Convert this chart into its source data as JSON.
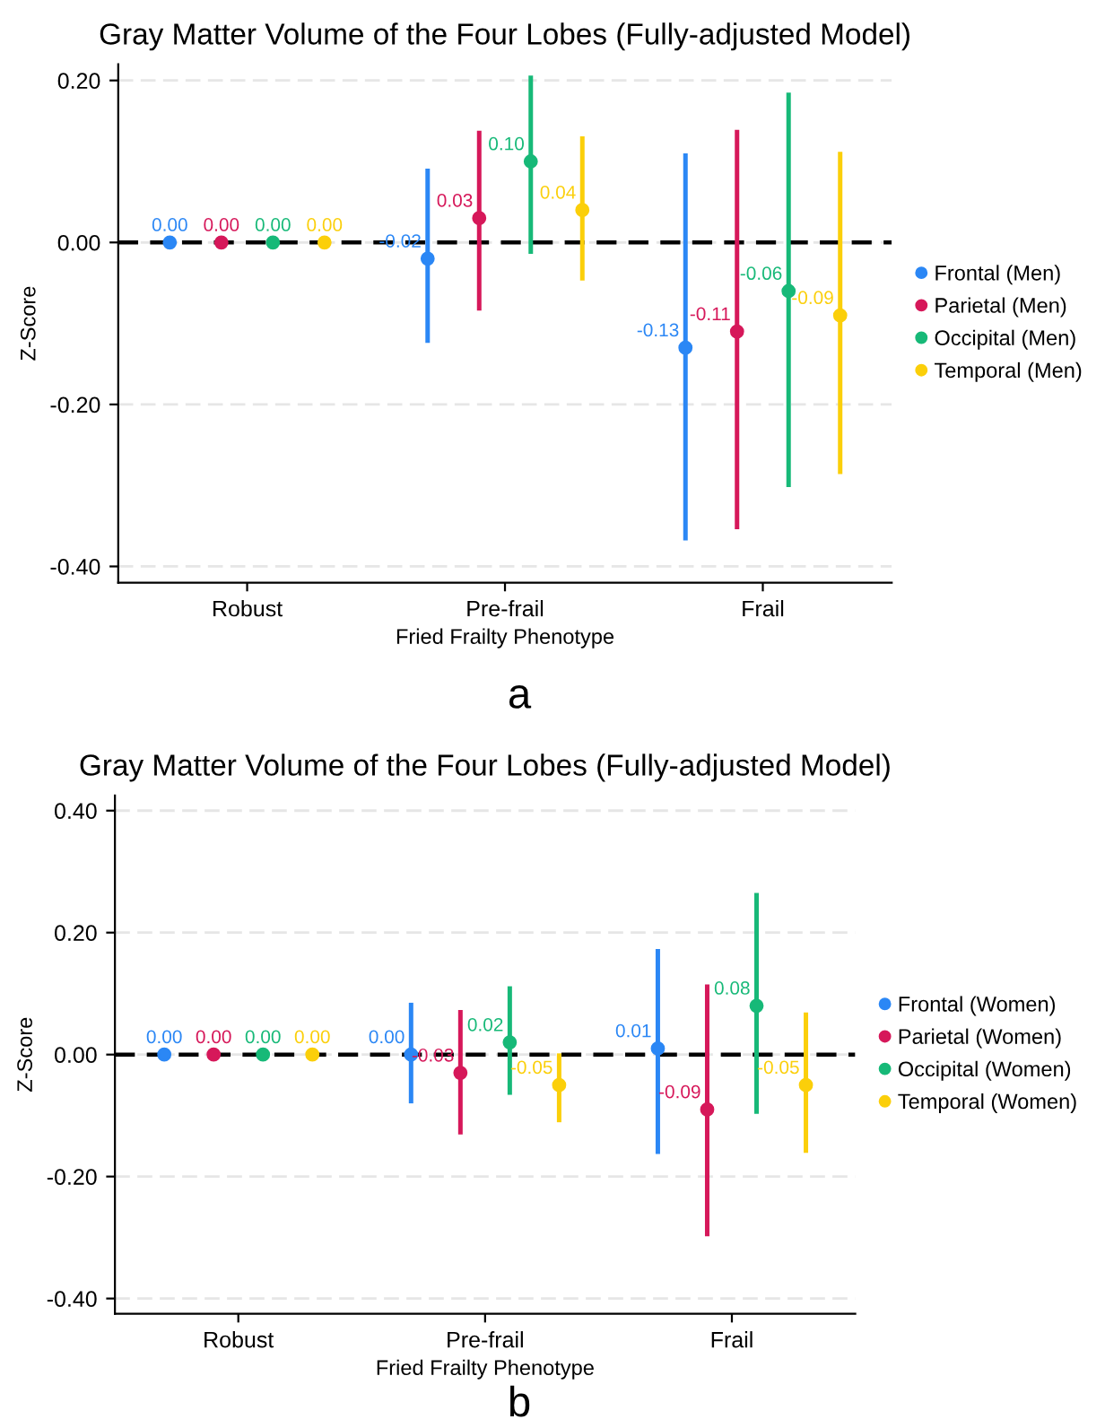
{
  "chart_data": [
    {
      "type": "scatter",
      "title": "Gray Matter Volume of the Four Lobes (Fully-adjusted Model)",
      "xlabel": "Fried Frailty Phenotype",
      "ylabel": "Z-Score",
      "annotations": [
        "a"
      ],
      "categories": [
        "Robust",
        "Pre-frail",
        "Frail"
      ],
      "ylim": [
        -0.42,
        0.22
      ],
      "yticks": [
        {
          "value": -0.4,
          "label": "-0.40"
        },
        {
          "value": -0.2,
          "label": "-0.20"
        },
        {
          "value": 0,
          "label": "0.00"
        },
        {
          "value": 0.2,
          "label": "0.20"
        }
      ],
      "grid": "y",
      "legend": "right",
      "marker": "circle",
      "ref_lines": [
        {
          "axis": "y",
          "value": 0,
          "color": "#000000",
          "line_style": "dashed"
        }
      ],
      "series": [
        {
          "name": "Frontal (Men)",
          "color": "#2b87f5",
          "values": [
            0,
            -0.02,
            -0.13
          ],
          "value_labels": [
            "0.00",
            "-0.02",
            "-0.13"
          ],
          "errors": [
            null,
            [
              -0.124,
              0.091
            ],
            [
              -0.368,
              0.11
            ]
          ]
        },
        {
          "name": "Parietal (Men)",
          "color": "#d6185a",
          "values": [
            0,
            0.03,
            -0.11
          ],
          "value_labels": [
            "0.00",
            "0.03",
            "-0.11"
          ],
          "errors": [
            null,
            [
              -0.084,
              0.138
            ],
            [
              -0.354,
              0.139
            ]
          ]
        },
        {
          "name": "Occipital (Men)",
          "color": "#17b978",
          "values": [
            0,
            0.1,
            -0.06
          ],
          "value_labels": [
            "0.00",
            "0.10",
            "-0.06"
          ],
          "errors": [
            null,
            [
              -0.014,
              0.206
            ],
            [
              -0.302,
              0.185
            ]
          ]
        },
        {
          "name": "Temporal (Men)",
          "color": "#fbcf0a",
          "values": [
            0,
            0.04,
            -0.09
          ],
          "value_labels": [
            "0.00",
            "0.04",
            "-0.09"
          ],
          "errors": [
            null,
            [
              -0.047,
              0.131
            ],
            [
              -0.286,
              0.112
            ]
          ]
        }
      ]
    },
    {
      "type": "scatter",
      "title": "Gray Matter Volume of the Four Lobes (Fully-adjusted Model)",
      "xlabel": "Fried Frailty Phenotype",
      "ylabel": "Z-Score",
      "annotations": [
        "b"
      ],
      "categories": [
        "Robust",
        "Pre-frail",
        "Frail"
      ],
      "ylim": [
        -0.425,
        0.425
      ],
      "yticks": [
        {
          "value": -0.4,
          "label": "-0.40"
        },
        {
          "value": -0.2,
          "label": "-0.20"
        },
        {
          "value": 0,
          "label": "0.00"
        },
        {
          "value": 0.2,
          "label": "0.20"
        },
        {
          "value": 0.4,
          "label": "0.40"
        }
      ],
      "grid": "y",
      "legend": "right",
      "marker": "circle",
      "ref_lines": [
        {
          "axis": "y",
          "value": 0,
          "color": "#000000",
          "line_style": "dashed"
        }
      ],
      "series": [
        {
          "name": "Frontal (Women)",
          "color": "#2b87f5",
          "values": [
            0,
            0.0,
            0.01
          ],
          "value_labels": [
            "0.00",
            "0.00",
            "0.01"
          ],
          "errors": [
            null,
            [
              -0.08,
              0.085
            ],
            [
              -0.163,
              0.173
            ]
          ]
        },
        {
          "name": "Parietal (Women)",
          "color": "#d6185a",
          "values": [
            0,
            -0.03,
            -0.09
          ],
          "value_labels": [
            "0.00",
            "-0.03",
            "-0.09"
          ],
          "errors": [
            null,
            [
              -0.131,
              0.073
            ],
            [
              -0.298,
              0.115
            ]
          ]
        },
        {
          "name": "Occipital (Women)",
          "color": "#17b978",
          "values": [
            0,
            0.02,
            0.08
          ],
          "value_labels": [
            "0.00",
            "0.02",
            "0.08"
          ],
          "errors": [
            null,
            [
              -0.066,
              0.112
            ],
            [
              -0.097,
              0.265
            ]
          ]
        },
        {
          "name": "Temporal (Women)",
          "color": "#fbcf0a",
          "values": [
            0,
            -0.05,
            -0.05
          ],
          "value_labels": [
            "0.00",
            "-0.05",
            "-0.05"
          ],
          "errors": [
            null,
            [
              -0.111,
              0.002
            ],
            [
              -0.161,
              0.069
            ]
          ]
        }
      ]
    }
  ]
}
